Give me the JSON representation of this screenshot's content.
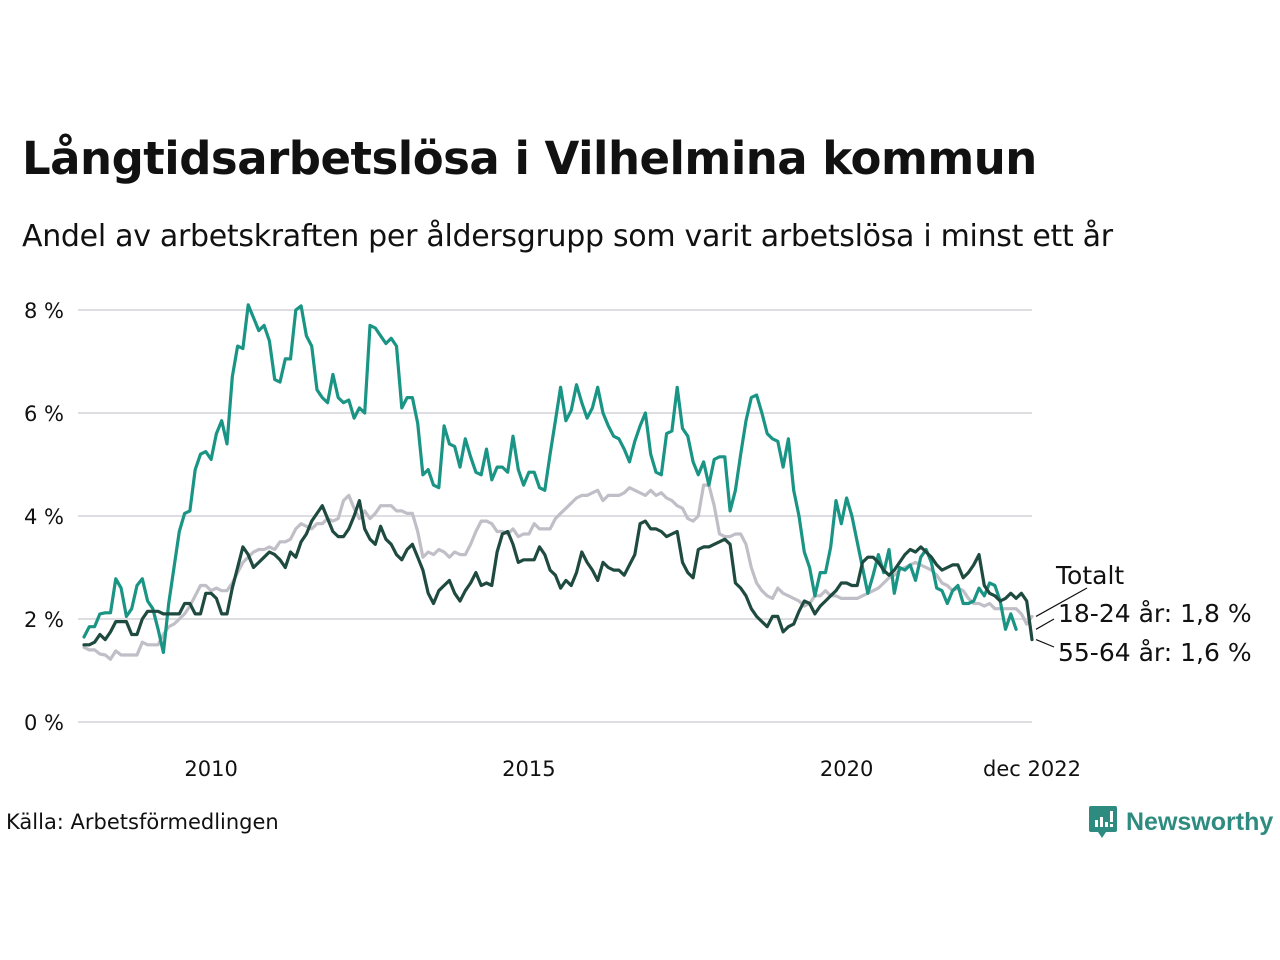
{
  "title": "Långtidsarbetslösa i Vilhelmina kommun",
  "subtitle": "Andel av arbetskraften per åldersgrupp som varit arbetslösa i minst ett år",
  "source": "Källa: Arbetsförmedlingen",
  "brand": {
    "name": "Newsworthy",
    "icon": "newsworthy-logo-icon",
    "color": "#2e8b7f"
  },
  "chart_data": {
    "type": "line",
    "title": "Långtidsarbetslösa i Vilhelmina kommun",
    "xlabel": "",
    "ylabel": "",
    "x_start": "2008-01",
    "x_end": "2022-12",
    "x_frequency": "monthly",
    "ylim": [
      0,
      8
    ],
    "y_ticks": [
      0,
      2,
      4,
      6,
      8
    ],
    "y_tick_labels": [
      "0 %",
      "2 %",
      "4 %",
      "6 %",
      "8 %"
    ],
    "x_tick_labels": [
      {
        "date": "2010-01",
        "label": "2010"
      },
      {
        "date": "2015-01",
        "label": "2015"
      },
      {
        "date": "2020-01",
        "label": "2020"
      },
      {
        "date": "2022-12",
        "label": "dec 2022"
      }
    ],
    "grid": true,
    "legend": "end-labels-right",
    "series": [
      {
        "name": "18-24 år",
        "end_label": "18-24 år: 1,8 %",
        "color": "#1a9484",
        "values": [
          1.65,
          1.85,
          1.85,
          2.1,
          2.12,
          2.12,
          2.78,
          2.6,
          2.05,
          2.2,
          2.65,
          2.78,
          2.35,
          2.2,
          1.8,
          1.35,
          2.3,
          3.0,
          3.7,
          4.05,
          4.1,
          4.9,
          5.2,
          5.25,
          5.1,
          5.6,
          5.85,
          5.4,
          6.7,
          7.3,
          7.25,
          8.1,
          7.85,
          7.6,
          7.7,
          7.4,
          6.65,
          6.6,
          7.05,
          7.05,
          8.0,
          8.08,
          7.5,
          7.3,
          6.45,
          6.3,
          6.2,
          6.75,
          6.3,
          6.2,
          6.25,
          5.9,
          6.1,
          6.0,
          7.7,
          7.65,
          7.5,
          7.35,
          7.45,
          7.3,
          6.1,
          6.3,
          6.3,
          5.8,
          4.8,
          4.9,
          4.6,
          4.55,
          5.75,
          5.4,
          5.35,
          4.95,
          5.5,
          5.15,
          4.85,
          4.8,
          5.3,
          4.7,
          4.95,
          4.95,
          4.85,
          5.55,
          4.9,
          4.6,
          4.85,
          4.85,
          4.55,
          4.5,
          5.2,
          5.85,
          6.5,
          5.85,
          6.05,
          6.55,
          6.2,
          5.9,
          6.1,
          6.5,
          6.0,
          5.75,
          5.55,
          5.5,
          5.3,
          5.05,
          5.45,
          5.75,
          6.0,
          5.2,
          4.85,
          4.8,
          5.6,
          5.65,
          6.5,
          5.7,
          5.55,
          5.05,
          4.8,
          5.05,
          4.6,
          5.1,
          5.15,
          5.15,
          4.1,
          4.5,
          5.2,
          5.85,
          6.3,
          6.35,
          6.0,
          5.6,
          5.5,
          5.45,
          4.95,
          5.5,
          4.5,
          4.0,
          3.3,
          3.0,
          2.45,
          2.9,
          2.9,
          3.4,
          4.3,
          3.85,
          4.35,
          4.0,
          3.5,
          3.0,
          2.5,
          2.85,
          3.25,
          2.9,
          3.35,
          2.5,
          3.0,
          2.95,
          3.05,
          2.75,
          3.2,
          3.35,
          3.1,
          2.6,
          2.55,
          2.3,
          2.55,
          2.65,
          2.3,
          2.3,
          2.35,
          2.6,
          2.45,
          2.7,
          2.65,
          2.35,
          1.8,
          2.1,
          1.8
        ]
      },
      {
        "name": "Totalt",
        "end_label": "Totalt",
        "color": "#c0bec6",
        "values": [
          1.45,
          1.4,
          1.4,
          1.32,
          1.3,
          1.22,
          1.38,
          1.3,
          1.3,
          1.3,
          1.3,
          1.55,
          1.5,
          1.5,
          1.5,
          1.7,
          1.85,
          1.9,
          2.0,
          2.1,
          2.25,
          2.45,
          2.65,
          2.65,
          2.55,
          2.6,
          2.55,
          2.55,
          2.7,
          2.9,
          3.1,
          3.2,
          3.3,
          3.35,
          3.35,
          3.4,
          3.35,
          3.5,
          3.5,
          3.55,
          3.75,
          3.85,
          3.8,
          3.75,
          3.85,
          3.85,
          3.95,
          3.9,
          3.95,
          4.3,
          4.4,
          4.15,
          3.95,
          4.1,
          3.95,
          4.05,
          4.2,
          4.2,
          4.2,
          4.1,
          4.1,
          4.05,
          4.05,
          3.7,
          3.2,
          3.3,
          3.25,
          3.35,
          3.3,
          3.2,
          3.3,
          3.25,
          3.25,
          3.45,
          3.7,
          3.9,
          3.9,
          3.85,
          3.7,
          3.7,
          3.65,
          3.75,
          3.6,
          3.65,
          3.65,
          3.85,
          3.75,
          3.75,
          3.75,
          3.95,
          4.05,
          4.15,
          4.25,
          4.35,
          4.4,
          4.4,
          4.45,
          4.5,
          4.3,
          4.4,
          4.4,
          4.4,
          4.45,
          4.55,
          4.5,
          4.45,
          4.4,
          4.5,
          4.4,
          4.45,
          4.35,
          4.3,
          4.2,
          4.15,
          3.95,
          3.9,
          4.0,
          4.6,
          4.6,
          4.2,
          3.65,
          3.6,
          3.6,
          3.65,
          3.65,
          3.45,
          3.0,
          2.7,
          2.55,
          2.45,
          2.4,
          2.6,
          2.5,
          2.45,
          2.4,
          2.35,
          2.25,
          2.3,
          2.45,
          2.45,
          2.55,
          2.45,
          2.45,
          2.4,
          2.4,
          2.4,
          2.4,
          2.45,
          2.5,
          2.55,
          2.6,
          2.7,
          2.8,
          2.85,
          2.95,
          3.0,
          3.05,
          3.1,
          3.05,
          3.0,
          2.95,
          2.85,
          2.7,
          2.65,
          2.55,
          2.6,
          2.55,
          2.4,
          2.3,
          2.3,
          2.25,
          2.3,
          2.2,
          2.2,
          2.2,
          2.2,
          2.2,
          2.1,
          1.9,
          2.05
        ]
      },
      {
        "name": "55-64 år",
        "end_label": "55-64 år: 1,6 %",
        "color": "#1f4a40",
        "values": [
          1.5,
          1.5,
          1.55,
          1.7,
          1.6,
          1.75,
          1.95,
          1.95,
          1.95,
          1.7,
          1.7,
          2.0,
          2.15,
          2.15,
          2.15,
          2.1,
          2.1,
          2.1,
          2.1,
          2.3,
          2.3,
          2.1,
          2.1,
          2.5,
          2.5,
          2.4,
          2.1,
          2.1,
          2.6,
          3.0,
          3.4,
          3.25,
          3.0,
          3.1,
          3.2,
          3.3,
          3.25,
          3.15,
          3.0,
          3.3,
          3.2,
          3.5,
          3.65,
          3.9,
          4.05,
          4.2,
          3.95,
          3.7,
          3.6,
          3.6,
          3.75,
          4.0,
          4.3,
          3.75,
          3.55,
          3.45,
          3.8,
          3.55,
          3.45,
          3.25,
          3.15,
          3.35,
          3.45,
          3.2,
          2.95,
          2.5,
          2.3,
          2.55,
          2.65,
          2.75,
          2.5,
          2.35,
          2.55,
          2.7,
          2.9,
          2.65,
          2.7,
          2.65,
          3.3,
          3.65,
          3.7,
          3.45,
          3.1,
          3.15,
          3.15,
          3.15,
          3.4,
          3.25,
          2.95,
          2.85,
          2.6,
          2.75,
          2.65,
          2.9,
          3.3,
          3.1,
          2.95,
          2.75,
          3.1,
          3.0,
          2.95,
          2.95,
          2.85,
          3.05,
          3.25,
          3.85,
          3.9,
          3.75,
          3.75,
          3.7,
          3.6,
          3.65,
          3.7,
          3.1,
          2.9,
          2.8,
          3.35,
          3.4,
          3.4,
          3.45,
          3.5,
          3.55,
          3.45,
          2.7,
          2.6,
          2.45,
          2.2,
          2.05,
          1.95,
          1.85,
          2.05,
          2.05,
          1.75,
          1.85,
          1.9,
          2.15,
          2.35,
          2.3,
          2.1,
          2.25,
          2.35,
          2.45,
          2.55,
          2.7,
          2.7,
          2.65,
          2.65,
          3.1,
          3.2,
          3.2,
          3.1,
          2.95,
          2.85,
          2.95,
          3.1,
          3.25,
          3.35,
          3.3,
          3.4,
          3.3,
          3.2,
          3.05,
          2.95,
          3.0,
          3.05,
          3.05,
          2.8,
          2.9,
          3.05,
          3.25,
          2.65,
          2.5,
          2.45,
          2.35,
          2.4,
          2.5,
          2.4,
          2.5,
          2.35,
          1.6
        ]
      }
    ]
  }
}
